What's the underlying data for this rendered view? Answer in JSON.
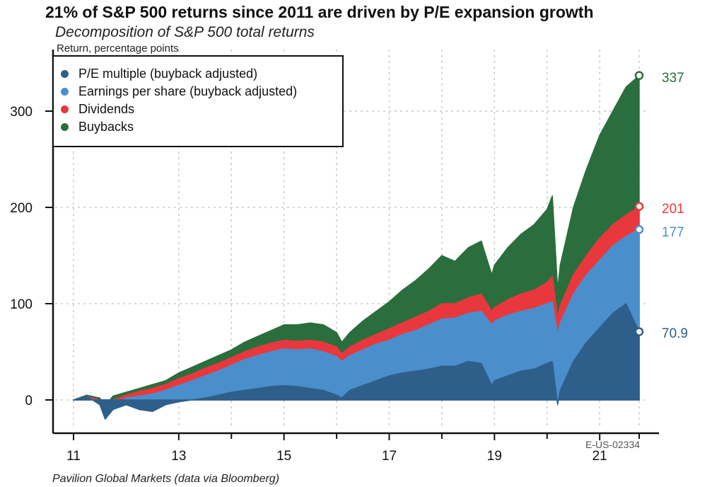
{
  "header": {
    "title": "21% of S&P 500 returns since 2011 are driven by P/E expansion growth",
    "subtitle": "Decomposition of S&P 500 total returns"
  },
  "footer": {
    "source": "Pavilion Global Markets (data via Bloomberg)",
    "code": "E-US-02334"
  },
  "chart_data": {
    "type": "area",
    "title": "21% of S&P 500 returns since 2011 are driven by P/E expansion growth",
    "subtitle": "Decomposition of S&P 500 total returns",
    "ylabel": "Return, percentage points",
    "xlabel": "",
    "xlim": [
      2011,
      2021.75
    ],
    "ylim": [
      -30,
      350
    ],
    "x_ticks": [
      "11",
      "13",
      "15",
      "17",
      "19",
      "21"
    ],
    "x_tick_values": [
      2011,
      2013,
      2015,
      2017,
      2019,
      2021
    ],
    "y_ticks": [
      0,
      100,
      200,
      300
    ],
    "grid": true,
    "legend_position": "top-left",
    "x": [
      2011.0,
      2011.25,
      2011.5,
      2011.6,
      2011.75,
      2012.0,
      2012.25,
      2012.5,
      2012.75,
      2013.0,
      2013.25,
      2013.5,
      2013.75,
      2014.0,
      2014.25,
      2014.5,
      2014.75,
      2015.0,
      2015.25,
      2015.5,
      2015.75,
      2016.0,
      2016.1,
      2016.25,
      2016.5,
      2016.75,
      2017.0,
      2017.25,
      2017.5,
      2017.75,
      2018.0,
      2018.25,
      2018.5,
      2018.75,
      2018.95,
      2019.0,
      2019.25,
      2019.5,
      2019.75,
      2020.0,
      2020.1,
      2020.2,
      2020.25,
      2020.5,
      2020.75,
      2021.0,
      2021.25,
      2021.5,
      2021.75
    ],
    "series": [
      {
        "name": "P/E multiple (buyback adjusted)",
        "color": "#2e5f8a",
        "values": [
          0,
          4,
          -5,
          -20,
          -10,
          -5,
          -10,
          -12,
          -5,
          -2,
          0,
          2,
          5,
          8,
          10,
          12,
          14,
          15,
          14,
          12,
          10,
          5,
          2,
          10,
          15,
          20,
          25,
          28,
          30,
          32,
          35,
          35,
          40,
          38,
          15,
          20,
          25,
          30,
          32,
          38,
          40,
          -5,
          10,
          40,
          60,
          75,
          90,
          100,
          70.9
        ]
      },
      {
        "name": "Earnings per share (buyback adjusted)",
        "color": "#4a8fcc",
        "values": [
          0,
          3,
          -2,
          -15,
          -5,
          2,
          4,
          6,
          10,
          15,
          20,
          25,
          30,
          36,
          42,
          46,
          50,
          53,
          52,
          53,
          50,
          45,
          40,
          46,
          52,
          58,
          62,
          68,
          72,
          78,
          84,
          85,
          90,
          92,
          78,
          82,
          88,
          92,
          95,
          100,
          102,
          68,
          80,
          110,
          130,
          145,
          160,
          170,
          177
        ]
      },
      {
        "name": "Dividends",
        "color": "#e8383d",
        "values": [
          0,
          4,
          0,
          -10,
          0,
          5,
          9,
          12,
          16,
          22,
          27,
          33,
          38,
          44,
          50,
          55,
          59,
          62,
          61,
          62,
          60,
          55,
          48,
          55,
          62,
          68,
          74,
          80,
          86,
          92,
          100,
          100,
          106,
          110,
          92,
          96,
          104,
          110,
          114,
          122,
          128,
          85,
          98,
          130,
          150,
          168,
          182,
          192,
          201
        ]
      },
      {
        "name": "Buybacks",
        "color": "#2a6e3d",
        "values": [
          0,
          5,
          2,
          -6,
          4,
          8,
          12,
          16,
          20,
          28,
          34,
          40,
          46,
          52,
          60,
          66,
          72,
          78,
          78,
          80,
          78,
          70,
          60,
          70,
          82,
          92,
          102,
          114,
          124,
          136,
          150,
          144,
          158,
          165,
          130,
          140,
          158,
          172,
          182,
          198,
          212,
          115,
          140,
          200,
          240,
          275,
          300,
          325,
          337
        ]
      }
    ],
    "end_values": [
      {
        "series": "Buybacks",
        "label": "337",
        "value": 337,
        "color": "#2a6e3d"
      },
      {
        "series": "Dividends",
        "label": "201",
        "value": 201,
        "color": "#e8383d"
      },
      {
        "series": "Earnings per share (buyback adjusted)",
        "label": "177",
        "value": 177,
        "color": "#4a8fcc"
      },
      {
        "series": "P/E multiple (buyback adjusted)",
        "label": "70.9",
        "value": 70.9,
        "color": "#2e5f8a"
      }
    ]
  }
}
